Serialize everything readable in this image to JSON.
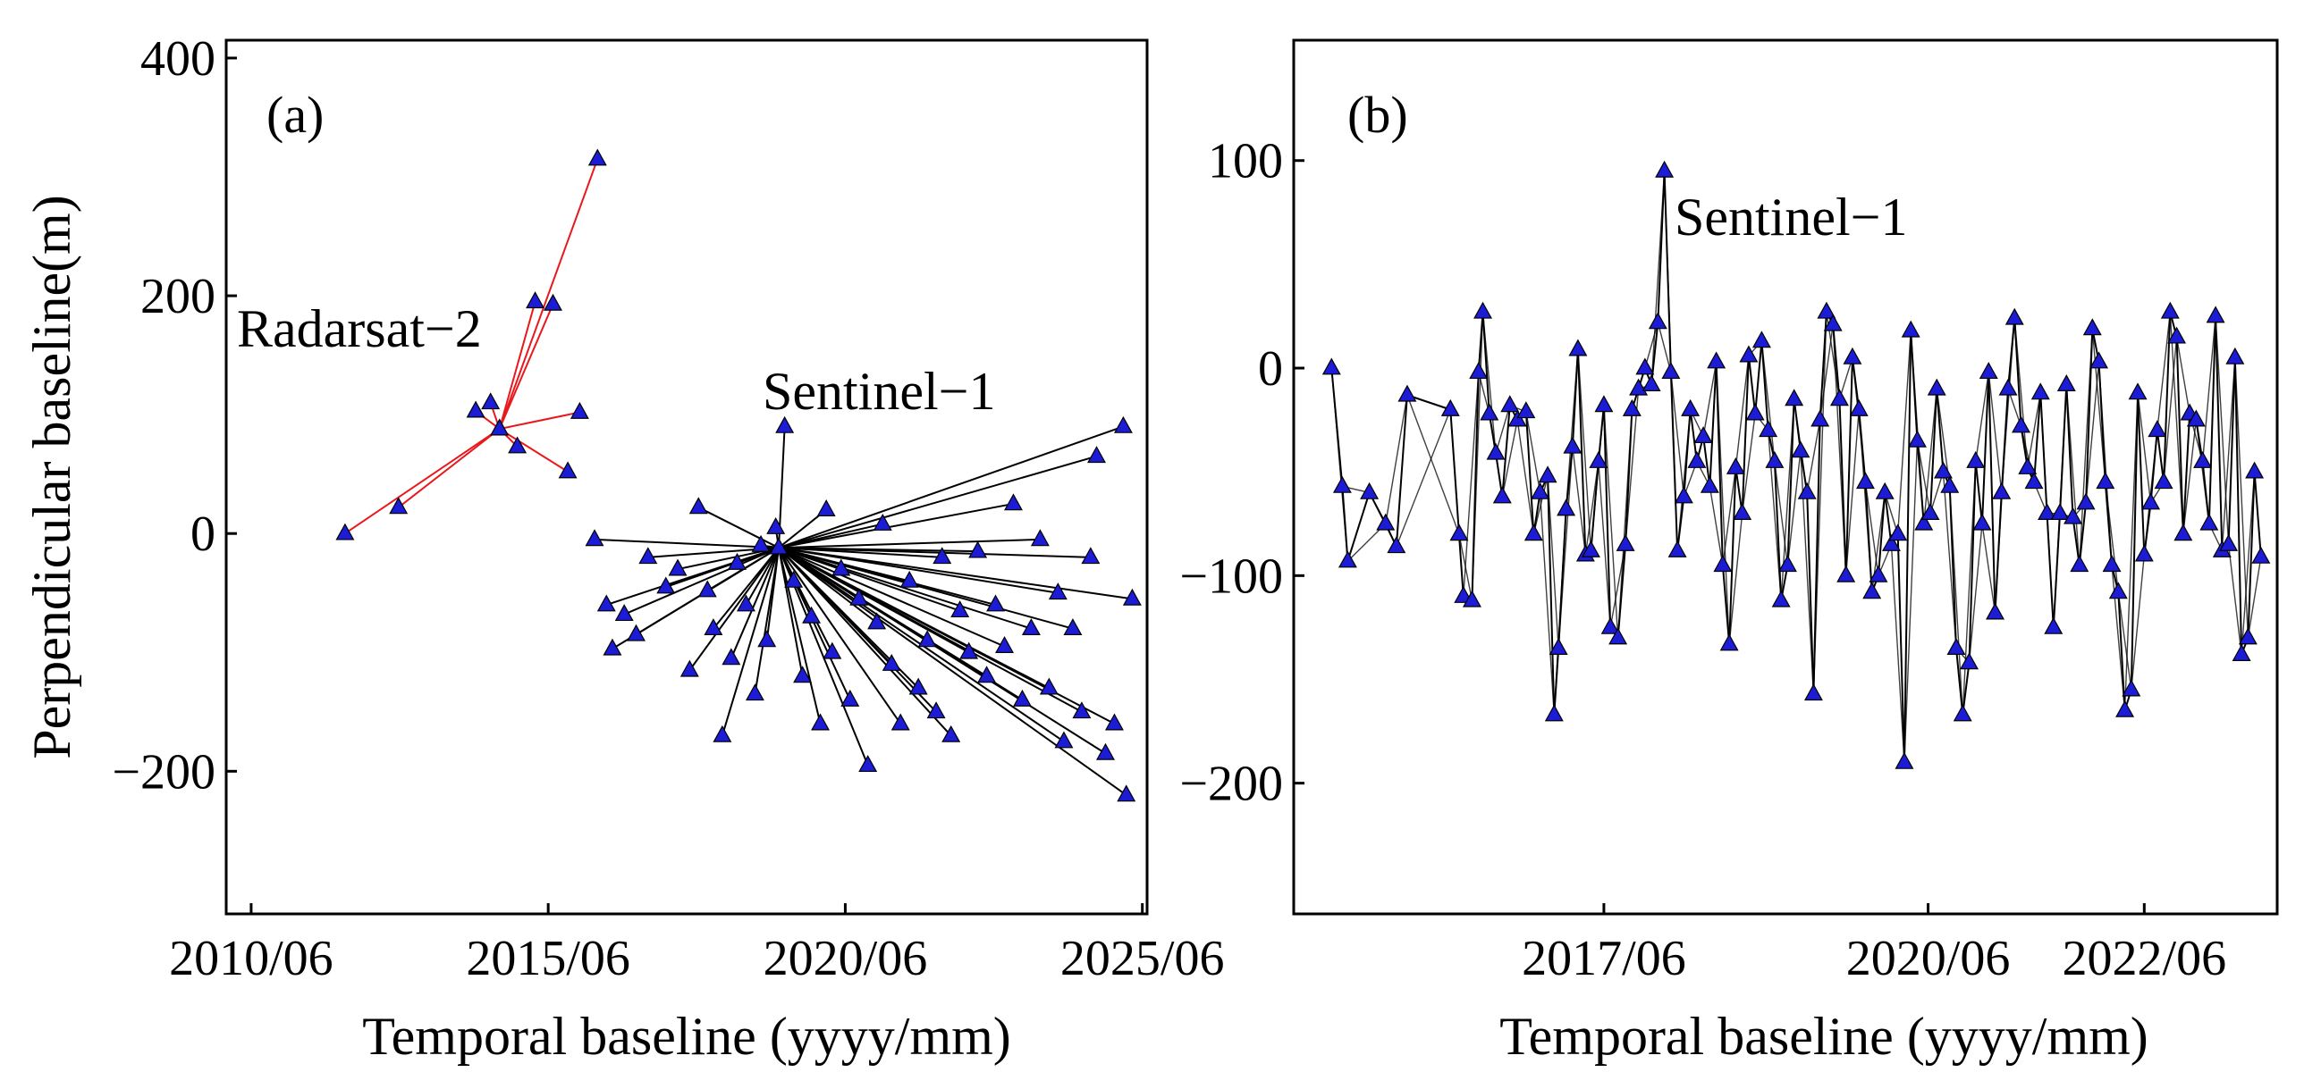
{
  "chart_data": [
    {
      "type": "scatter",
      "panel_label": "(a)",
      "xlabel": "Temporal baseline (yyyy/mm)",
      "ylabel": "Perpendicular baseline(m)",
      "xlim": [
        2010.0,
        2025.5
      ],
      "ylim": [
        -320,
        415
      ],
      "xticks": [
        {
          "value": 2010.42,
          "label": "2010/06"
        },
        {
          "value": 2015.42,
          "label": "2015/06"
        },
        {
          "value": 2020.42,
          "label": "2020/06"
        },
        {
          "value": 2025.42,
          "label": "2025/06"
        }
      ],
      "yticks": [
        {
          "value": 400,
          "label": "400"
        },
        {
          "value": 200,
          "label": "200"
        },
        {
          "value": 0,
          "label": "0"
        },
        {
          "value": -200,
          "label": "−200"
        }
      ],
      "annotations": [
        "Radarsat−2",
        "Sentinel−1"
      ],
      "series": [
        {
          "name": "Radarsat-2",
          "marker_color": "#1c1cd6",
          "line_color": "#e8181c",
          "reference": {
            "x": 2014.6,
            "y": 88
          },
          "points": [
            {
              "x": 2012.0,
              "y": 0
            },
            {
              "x": 2012.9,
              "y": 22
            },
            {
              "x": 2014.2,
              "y": 103
            },
            {
              "x": 2014.45,
              "y": 110
            },
            {
              "x": 2014.6,
              "y": 88
            },
            {
              "x": 2014.9,
              "y": 73
            },
            {
              "x": 2015.2,
              "y": 195
            },
            {
              "x": 2015.5,
              "y": 193
            },
            {
              "x": 2015.75,
              "y": 52
            },
            {
              "x": 2015.95,
              "y": 102
            },
            {
              "x": 2016.25,
              "y": 315
            }
          ]
        },
        {
          "name": "Sentinel-1",
          "marker_color": "#1c1cd6",
          "line_color": "#000000",
          "reference": {
            "x": 2019.3,
            "y": -12
          },
          "points": [
            {
              "x": 2016.2,
              "y": -5
            },
            {
              "x": 2016.4,
              "y": -60
            },
            {
              "x": 2016.5,
              "y": -97
            },
            {
              "x": 2016.7,
              "y": -68
            },
            {
              "x": 2016.9,
              "y": -85
            },
            {
              "x": 2017.1,
              "y": -20
            },
            {
              "x": 2017.4,
              "y": -45
            },
            {
              "x": 2017.6,
              "y": -30
            },
            {
              "x": 2017.8,
              "y": -115
            },
            {
              "x": 2017.95,
              "y": 22
            },
            {
              "x": 2018.1,
              "y": -48
            },
            {
              "x": 2018.2,
              "y": -80
            },
            {
              "x": 2018.35,
              "y": -170
            },
            {
              "x": 2018.5,
              "y": -105
            },
            {
              "x": 2018.6,
              "y": -25
            },
            {
              "x": 2018.75,
              "y": -60
            },
            {
              "x": 2018.9,
              "y": -135
            },
            {
              "x": 2019.0,
              "y": -10
            },
            {
              "x": 2019.1,
              "y": -90
            },
            {
              "x": 2019.25,
              "y": 5
            },
            {
              "x": 2019.4,
              "y": 90
            },
            {
              "x": 2019.55,
              "y": -40
            },
            {
              "x": 2019.7,
              "y": -120
            },
            {
              "x": 2019.85,
              "y": -70
            },
            {
              "x": 2020.0,
              "y": -160
            },
            {
              "x": 2020.1,
              "y": 20
            },
            {
              "x": 2020.2,
              "y": -100
            },
            {
              "x": 2020.35,
              "y": -30
            },
            {
              "x": 2020.5,
              "y": -140
            },
            {
              "x": 2020.65,
              "y": -55
            },
            {
              "x": 2020.8,
              "y": -195
            },
            {
              "x": 2020.95,
              "y": -75
            },
            {
              "x": 2021.05,
              "y": 8
            },
            {
              "x": 2021.2,
              "y": -110
            },
            {
              "x": 2021.35,
              "y": -160
            },
            {
              "x": 2021.5,
              "y": -40
            },
            {
              "x": 2021.65,
              "y": -130
            },
            {
              "x": 2021.8,
              "y": -90
            },
            {
              "x": 2021.95,
              "y": -150
            },
            {
              "x": 2022.05,
              "y": -20
            },
            {
              "x": 2022.2,
              "y": -170
            },
            {
              "x": 2022.35,
              "y": -65
            },
            {
              "x": 2022.5,
              "y": -100
            },
            {
              "x": 2022.65,
              "y": -15
            },
            {
              "x": 2022.8,
              "y": -120
            },
            {
              "x": 2022.95,
              "y": -60
            },
            {
              "x": 2023.1,
              "y": -95
            },
            {
              "x": 2023.25,
              "y": 25
            },
            {
              "x": 2023.4,
              "y": -140
            },
            {
              "x": 2023.55,
              "y": -80
            },
            {
              "x": 2023.7,
              "y": -5
            },
            {
              "x": 2023.85,
              "y": -130
            },
            {
              "x": 2024.0,
              "y": -50
            },
            {
              "x": 2024.1,
              "y": -175
            },
            {
              "x": 2024.25,
              "y": -80
            },
            {
              "x": 2024.4,
              "y": -150
            },
            {
              "x": 2024.55,
              "y": -20
            },
            {
              "x": 2024.65,
              "y": 65
            },
            {
              "x": 2024.8,
              "y": -185
            },
            {
              "x": 2024.95,
              "y": -160
            },
            {
              "x": 2025.1,
              "y": 90
            },
            {
              "x": 2025.15,
              "y": -220
            },
            {
              "x": 2025.25,
              "y": -55
            }
          ]
        }
      ]
    },
    {
      "type": "scatter",
      "panel_label": "(b)",
      "xlabel": "Temporal baseline (yyyy/mm)",
      "ylabel": "",
      "xlim": [
        2014.55,
        2023.65
      ],
      "ylim": [
        -263,
        158
      ],
      "xticks": [
        {
          "value": 2017.42,
          "label": "2017/06"
        },
        {
          "value": 2020.42,
          "label": "2020/06"
        },
        {
          "value": 2022.42,
          "label": "2022/06"
        }
      ],
      "yticks": [
        {
          "value": 100,
          "label": "100"
        },
        {
          "value": 0,
          "label": "0"
        },
        {
          "value": -100,
          "label": "−100"
        },
        {
          "value": -200,
          "label": "−200"
        }
      ],
      "annotations": [
        "Sentinel−1"
      ],
      "series": [
        {
          "name": "Sentinel-1",
          "marker_color": "#1c1cd6",
          "line_color": "#000000",
          "points": [
            {
              "x": 2014.9,
              "y": 0
            },
            {
              "x": 2015.0,
              "y": -57
            },
            {
              "x": 2015.05,
              "y": -93
            },
            {
              "x": 2015.25,
              "y": -60
            },
            {
              "x": 2015.4,
              "y": -75
            },
            {
              "x": 2015.5,
              "y": -86
            },
            {
              "x": 2015.6,
              "y": -13
            },
            {
              "x": 2016.0,
              "y": -20
            },
            {
              "x": 2016.08,
              "y": -80
            },
            {
              "x": 2016.12,
              "y": -110
            },
            {
              "x": 2016.2,
              "y": -112
            },
            {
              "x": 2016.26,
              "y": -2
            },
            {
              "x": 2016.3,
              "y": 27
            },
            {
              "x": 2016.36,
              "y": -22
            },
            {
              "x": 2016.42,
              "y": -41
            },
            {
              "x": 2016.48,
              "y": -62
            },
            {
              "x": 2016.55,
              "y": -18
            },
            {
              "x": 2016.62,
              "y": -25
            },
            {
              "x": 2016.7,
              "y": -21
            },
            {
              "x": 2016.77,
              "y": -80
            },
            {
              "x": 2016.83,
              "y": -60
            },
            {
              "x": 2016.9,
              "y": -52
            },
            {
              "x": 2016.96,
              "y": -167
            },
            {
              "x": 2017.0,
              "y": -135
            },
            {
              "x": 2017.07,
              "y": -68
            },
            {
              "x": 2017.13,
              "y": -38
            },
            {
              "x": 2017.18,
              "y": 9
            },
            {
              "x": 2017.25,
              "y": -90
            },
            {
              "x": 2017.3,
              "y": -88
            },
            {
              "x": 2017.37,
              "y": -45
            },
            {
              "x": 2017.42,
              "y": -18
            },
            {
              "x": 2017.48,
              "y": -125
            },
            {
              "x": 2017.55,
              "y": -130
            },
            {
              "x": 2017.62,
              "y": -85
            },
            {
              "x": 2017.68,
              "y": -20
            },
            {
              "x": 2017.74,
              "y": -10
            },
            {
              "x": 2017.8,
              "y": 0
            },
            {
              "x": 2017.86,
              "y": -8
            },
            {
              "x": 2017.92,
              "y": 22
            },
            {
              "x": 2017.98,
              "y": 95
            },
            {
              "x": 2018.04,
              "y": -2
            },
            {
              "x": 2018.1,
              "y": -88
            },
            {
              "x": 2018.16,
              "y": -62
            },
            {
              "x": 2018.22,
              "y": -20
            },
            {
              "x": 2018.28,
              "y": -45
            },
            {
              "x": 2018.34,
              "y": -33
            },
            {
              "x": 2018.4,
              "y": -57
            },
            {
              "x": 2018.46,
              "y": 3
            },
            {
              "x": 2018.52,
              "y": -95
            },
            {
              "x": 2018.58,
              "y": -133
            },
            {
              "x": 2018.64,
              "y": -48
            },
            {
              "x": 2018.7,
              "y": -70
            },
            {
              "x": 2018.76,
              "y": 6
            },
            {
              "x": 2018.82,
              "y": -22
            },
            {
              "x": 2018.88,
              "y": 13
            },
            {
              "x": 2018.94,
              "y": -30
            },
            {
              "x": 2019.0,
              "y": -45
            },
            {
              "x": 2019.06,
              "y": -112
            },
            {
              "x": 2019.12,
              "y": -95
            },
            {
              "x": 2019.18,
              "y": -15
            },
            {
              "x": 2019.24,
              "y": -40
            },
            {
              "x": 2019.3,
              "y": -60
            },
            {
              "x": 2019.36,
              "y": -157
            },
            {
              "x": 2019.42,
              "y": -25
            },
            {
              "x": 2019.48,
              "y": 27
            },
            {
              "x": 2019.54,
              "y": 21
            },
            {
              "x": 2019.6,
              "y": -15
            },
            {
              "x": 2019.66,
              "y": -100
            },
            {
              "x": 2019.72,
              "y": 5
            },
            {
              "x": 2019.78,
              "y": -20
            },
            {
              "x": 2019.84,
              "y": -55
            },
            {
              "x": 2019.9,
              "y": -108
            },
            {
              "x": 2019.96,
              "y": -100
            },
            {
              "x": 2020.02,
              "y": -60
            },
            {
              "x": 2020.08,
              "y": -85
            },
            {
              "x": 2020.14,
              "y": -80
            },
            {
              "x": 2020.2,
              "y": -190
            },
            {
              "x": 2020.26,
              "y": 18
            },
            {
              "x": 2020.32,
              "y": -35
            },
            {
              "x": 2020.38,
              "y": -75
            },
            {
              "x": 2020.44,
              "y": -70
            },
            {
              "x": 2020.5,
              "y": -10
            },
            {
              "x": 2020.56,
              "y": -50
            },
            {
              "x": 2020.62,
              "y": -57
            },
            {
              "x": 2020.68,
              "y": -135
            },
            {
              "x": 2020.74,
              "y": -167
            },
            {
              "x": 2020.8,
              "y": -142
            },
            {
              "x": 2020.86,
              "y": -45
            },
            {
              "x": 2020.92,
              "y": -75
            },
            {
              "x": 2020.98,
              "y": -2
            },
            {
              "x": 2021.04,
              "y": -118
            },
            {
              "x": 2021.1,
              "y": -60
            },
            {
              "x": 2021.16,
              "y": -10
            },
            {
              "x": 2021.22,
              "y": 24
            },
            {
              "x": 2021.28,
              "y": -28
            },
            {
              "x": 2021.34,
              "y": -48
            },
            {
              "x": 2021.4,
              "y": -55
            },
            {
              "x": 2021.46,
              "y": -12
            },
            {
              "x": 2021.52,
              "y": -70
            },
            {
              "x": 2021.58,
              "y": -125
            },
            {
              "x": 2021.64,
              "y": -70
            },
            {
              "x": 2021.7,
              "y": -8
            },
            {
              "x": 2021.76,
              "y": -72
            },
            {
              "x": 2021.82,
              "y": -95
            },
            {
              "x": 2021.88,
              "y": -65
            },
            {
              "x": 2021.94,
              "y": 19
            },
            {
              "x": 2022.0,
              "y": 3
            },
            {
              "x": 2022.06,
              "y": -55
            },
            {
              "x": 2022.12,
              "y": -95
            },
            {
              "x": 2022.18,
              "y": -108
            },
            {
              "x": 2022.24,
              "y": -165
            },
            {
              "x": 2022.3,
              "y": -155
            },
            {
              "x": 2022.36,
              "y": -12
            },
            {
              "x": 2022.42,
              "y": -90
            },
            {
              "x": 2022.48,
              "y": -65
            },
            {
              "x": 2022.54,
              "y": -30
            },
            {
              "x": 2022.6,
              "y": -55
            },
            {
              "x": 2022.66,
              "y": 27
            },
            {
              "x": 2022.72,
              "y": 15
            },
            {
              "x": 2022.78,
              "y": -80
            },
            {
              "x": 2022.84,
              "y": -22
            },
            {
              "x": 2022.9,
              "y": -25
            },
            {
              "x": 2022.96,
              "y": -45
            },
            {
              "x": 2023.02,
              "y": -75
            },
            {
              "x": 2023.08,
              "y": 25
            },
            {
              "x": 2023.14,
              "y": -88
            },
            {
              "x": 2023.2,
              "y": -85
            },
            {
              "x": 2023.26,
              "y": 5
            },
            {
              "x": 2023.32,
              "y": -138
            },
            {
              "x": 2023.38,
              "y": -130
            },
            {
              "x": 2023.44,
              "y": -50
            },
            {
              "x": 2023.5,
              "y": -91
            }
          ]
        }
      ]
    }
  ]
}
